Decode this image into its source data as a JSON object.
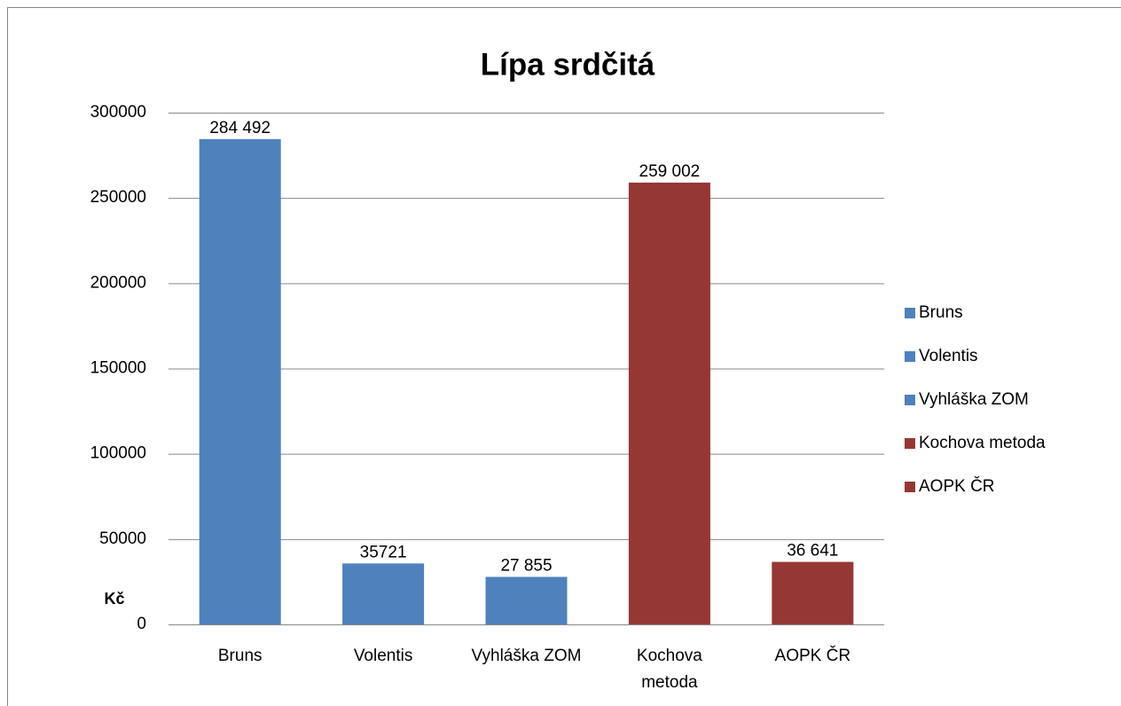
{
  "chart_data": {
    "type": "bar",
    "title": "Lípa srdčitá",
    "y_label": "Kč",
    "categories": [
      "Bruns",
      "Volentis",
      "Vyhláška ZOM",
      "Kochova metoda",
      "AOPK ČR"
    ],
    "values": [
      284492,
      35721,
      27855,
      259002,
      36641
    ],
    "value_labels": [
      "284 492",
      "35721",
      "27 855",
      "259 002",
      "36 641"
    ],
    "colors": [
      "#4f81bd",
      "#4f81bd",
      "#4f81bd",
      "#953735",
      "#953735"
    ],
    "ylim": [
      0,
      300000
    ],
    "yticks": [
      0,
      50000,
      100000,
      150000,
      200000,
      250000,
      300000
    ],
    "grid": true,
    "legend": "right"
  }
}
